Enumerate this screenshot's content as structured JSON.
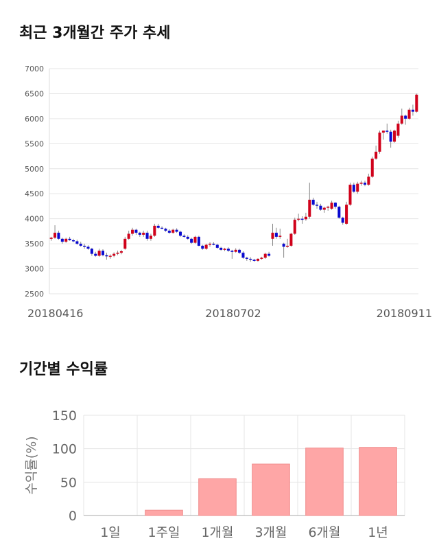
{
  "headings": {
    "price_trend": "최근 3개월간 주가 추세",
    "period_returns": "기간별 수익률"
  },
  "chart_data": [
    {
      "type": "candlestick",
      "title": "최근 3개월간 주가 추세",
      "ylim": [
        2500,
        7000
      ],
      "yticks": [
        2500,
        3000,
        3500,
        4000,
        4500,
        5000,
        5500,
        6000,
        6500,
        7000
      ],
      "x_tick_labels": [
        "20180416",
        "20180702",
        "20180911"
      ],
      "grid": true,
      "colors": {
        "up": "#d0021b",
        "down": "#0a0ad0",
        "wick": "#888888"
      },
      "candles": [
        [
          3600,
          3640,
          3560,
          3620
        ],
        [
          3620,
          3870,
          3600,
          3720
        ],
        [
          3720,
          3760,
          3580,
          3600
        ],
        [
          3600,
          3620,
          3500,
          3540
        ],
        [
          3540,
          3620,
          3520,
          3600
        ],
        [
          3600,
          3640,
          3560,
          3570
        ],
        [
          3570,
          3600,
          3530,
          3550
        ],
        [
          3550,
          3580,
          3480,
          3500
        ],
        [
          3500,
          3540,
          3440,
          3460
        ],
        [
          3460,
          3500,
          3400,
          3440
        ],
        [
          3440,
          3470,
          3380,
          3400
        ],
        [
          3400,
          3420,
          3260,
          3300
        ],
        [
          3300,
          3340,
          3240,
          3260
        ],
        [
          3260,
          3400,
          3240,
          3360
        ],
        [
          3360,
          3390,
          3250,
          3270
        ],
        [
          3270,
          3320,
          3180,
          3250
        ],
        [
          3250,
          3290,
          3200,
          3260
        ],
        [
          3260,
          3330,
          3230,
          3300
        ],
        [
          3300,
          3360,
          3270,
          3320
        ],
        [
          3320,
          3380,
          3290,
          3350
        ],
        [
          3400,
          3640,
          3380,
          3600
        ],
        [
          3600,
          3760,
          3580,
          3700
        ],
        [
          3700,
          3820,
          3660,
          3780
        ],
        [
          3780,
          3800,
          3680,
          3720
        ],
        [
          3720,
          3740,
          3640,
          3680
        ],
        [
          3680,
          3760,
          3640,
          3720
        ],
        [
          3720,
          3760,
          3560,
          3600
        ],
        [
          3600,
          3700,
          3560,
          3660
        ],
        [
          3660,
          3900,
          3640,
          3860
        ],
        [
          3860,
          3900,
          3800,
          3820
        ],
        [
          3820,
          3850,
          3790,
          3800
        ],
        [
          3800,
          3820,
          3740,
          3760
        ],
        [
          3760,
          3790,
          3700,
          3720
        ],
        [
          3720,
          3800,
          3700,
          3780
        ],
        [
          3780,
          3810,
          3720,
          3740
        ],
        [
          3740,
          3760,
          3640,
          3660
        ],
        [
          3660,
          3690,
          3620,
          3640
        ],
        [
          3640,
          3670,
          3580,
          3600
        ],
        [
          3600,
          3620,
          3500,
          3520
        ],
        [
          3520,
          3660,
          3500,
          3640
        ],
        [
          3640,
          3660,
          3450,
          3460
        ],
        [
          3460,
          3480,
          3380,
          3400
        ],
        [
          3400,
          3500,
          3380,
          3480
        ],
        [
          3480,
          3530,
          3440,
          3500
        ],
        [
          3500,
          3530,
          3470,
          3480
        ],
        [
          3480,
          3500,
          3400,
          3420
        ],
        [
          3420,
          3440,
          3360,
          3380
        ],
        [
          3380,
          3420,
          3350,
          3400
        ],
        [
          3400,
          3430,
          3340,
          3360
        ],
        [
          3360,
          3380,
          3200,
          3340
        ],
        [
          3340,
          3410,
          3320,
          3380
        ],
        [
          3380,
          3400,
          3300,
          3320
        ],
        [
          3320,
          3350,
          3200,
          3220
        ],
        [
          3220,
          3240,
          3160,
          3200
        ],
        [
          3200,
          3230,
          3140,
          3180
        ],
        [
          3180,
          3200,
          3140,
          3160
        ],
        [
          3160,
          3210,
          3140,
          3200
        ],
        [
          3200,
          3240,
          3180,
          3220
        ],
        [
          3220,
          3320,
          3200,
          3300
        ],
        [
          3300,
          3340,
          3240,
          3260
        ],
        [
          3600,
          3900,
          3460,
          3720
        ],
        [
          3720,
          3820,
          3600,
          3640
        ],
        [
          3640,
          3800,
          3600,
          3660
        ],
        [
          3500,
          3520,
          3220,
          3440
        ],
        [
          3440,
          3600,
          3420,
          3460
        ],
        [
          3460,
          3720,
          3440,
          3700
        ],
        [
          3700,
          4020,
          3680,
          3980
        ],
        [
          3980,
          4100,
          3950,
          4000
        ],
        [
          4000,
          4050,
          3900,
          3990
        ],
        [
          3990,
          4120,
          3960,
          4040
        ],
        [
          4040,
          4720,
          4000,
          4380
        ],
        [
          4380,
          4420,
          4260,
          4280
        ],
        [
          4280,
          4340,
          4200,
          4260
        ],
        [
          4260,
          4300,
          4160,
          4180
        ],
        [
          4180,
          4240,
          4120,
          4220
        ],
        [
          4220,
          4260,
          4160,
          4240
        ],
        [
          4200,
          4360,
          4180,
          4320
        ],
        [
          4320,
          4330,
          4200,
          4240
        ],
        [
          4240,
          4260,
          4000,
          4020
        ],
        [
          4020,
          4040,
          3880,
          3920
        ],
        [
          3900,
          4340,
          3880,
          4280
        ],
        [
          4280,
          4720,
          4260,
          4680
        ],
        [
          4680,
          4720,
          4520,
          4540
        ],
        [
          4540,
          4740,
          4500,
          4700
        ],
        [
          4700,
          4760,
          4660,
          4720
        ],
        [
          4720,
          4760,
          4650,
          4680
        ],
        [
          4680,
          4900,
          4660,
          4840
        ],
        [
          4840,
          5240,
          4820,
          5200
        ],
        [
          5200,
          5460,
          5180,
          5340
        ],
        [
          5340,
          5760,
          5300,
          5720
        ],
        [
          5720,
          5760,
          5580,
          5760
        ],
        [
          5760,
          5900,
          5700,
          5740
        ],
        [
          5740,
          5780,
          5420,
          5540
        ],
        [
          5540,
          5780,
          5520,
          5760
        ],
        [
          5660,
          5960,
          5620,
          5900
        ],
        [
          5900,
          6200,
          5880,
          6060
        ],
        [
          6060,
          6080,
          5880,
          6000
        ],
        [
          6000,
          6220,
          5980,
          6180
        ],
        [
          6180,
          6280,
          6060,
          6140
        ],
        [
          6140,
          6500,
          6120,
          6480
        ]
      ]
    },
    {
      "type": "bar",
      "categories": [
        "1일",
        "1주일",
        "1개월",
        "3개월",
        "6개월",
        "1년"
      ],
      "values": [
        0,
        8,
        55,
        77,
        101,
        102
      ],
      "ylabel": "수익률(%)",
      "ylim": [
        0,
        150
      ],
      "yticks": [
        0,
        50,
        100,
        150
      ],
      "grid": true,
      "colors": {
        "bar": "#fea6a6",
        "bar_border": "#f08c8c"
      }
    }
  ]
}
